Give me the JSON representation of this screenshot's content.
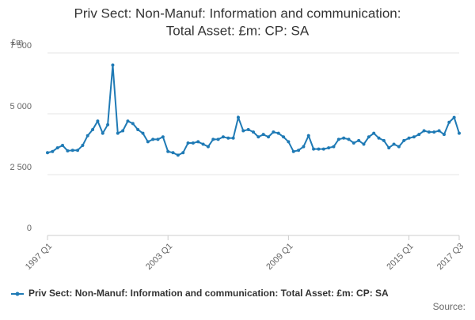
{
  "chart_data": {
    "type": "line",
    "title": [
      "Priv Sect: Non-Manuf: Information and communication:",
      "Total Asset: £m: CP: SA"
    ],
    "y_unit": "£m",
    "source": "Source:",
    "categories": [
      "1997 Q1",
      null,
      null,
      null,
      null,
      null,
      null,
      null,
      null,
      null,
      null,
      null,
      null,
      null,
      null,
      null,
      null,
      null,
      null,
      null,
      null,
      null,
      null,
      null,
      "2003 Q1",
      null,
      null,
      null,
      null,
      null,
      null,
      null,
      null,
      null,
      null,
      null,
      null,
      null,
      null,
      null,
      null,
      null,
      null,
      null,
      null,
      null,
      null,
      null,
      "2009 Q1",
      null,
      null,
      null,
      null,
      null,
      null,
      null,
      null,
      null,
      null,
      null,
      null,
      null,
      null,
      null,
      null,
      null,
      null,
      null,
      null,
      null,
      null,
      null,
      "2015 Q1",
      null,
      null,
      null,
      null,
      null,
      null,
      null,
      null,
      null,
      "2017 Q3"
    ],
    "series": [
      {
        "name": "Priv Sect: Non-Manuf: Information and communication: Total Asset: £m: CP: SA",
        "color": "#1f7ab5",
        "values": [
          3400,
          3450,
          3600,
          3700,
          3480,
          3500,
          3500,
          3700,
          4100,
          4350,
          4700,
          4200,
          4550,
          7000,
          4200,
          4300,
          4700,
          4600,
          4350,
          4200,
          3850,
          3950,
          3950,
          4050,
          3450,
          3400,
          3300,
          3400,
          3800,
          3800,
          3850,
          3750,
          3650,
          3950,
          3950,
          4050,
          4000,
          4000,
          4850,
          4300,
          4350,
          4250,
          4050,
          4150,
          4050,
          4250,
          4200,
          4050,
          3850,
          3450,
          3500,
          3650,
          4100,
          3550,
          3550,
          3550,
          3600,
          3650,
          3950,
          4000,
          3950,
          3800,
          3900,
          3750,
          4050,
          4200,
          4000,
          3900,
          3600,
          3750,
          3650,
          3900,
          4000,
          4050,
          4150,
          4300,
          4250,
          4250,
          4300,
          4150,
          4650,
          4850,
          4200
        ]
      }
    ],
    "ylim": [
      0,
      7500
    ],
    "yticks": [
      {
        "value": 0,
        "label": "0"
      },
      {
        "value": 2500,
        "label": "2 500"
      },
      {
        "value": 5000,
        "label": "5 000"
      },
      {
        "value": 7500,
        "label": "7 500"
      }
    ],
    "grid": true
  }
}
